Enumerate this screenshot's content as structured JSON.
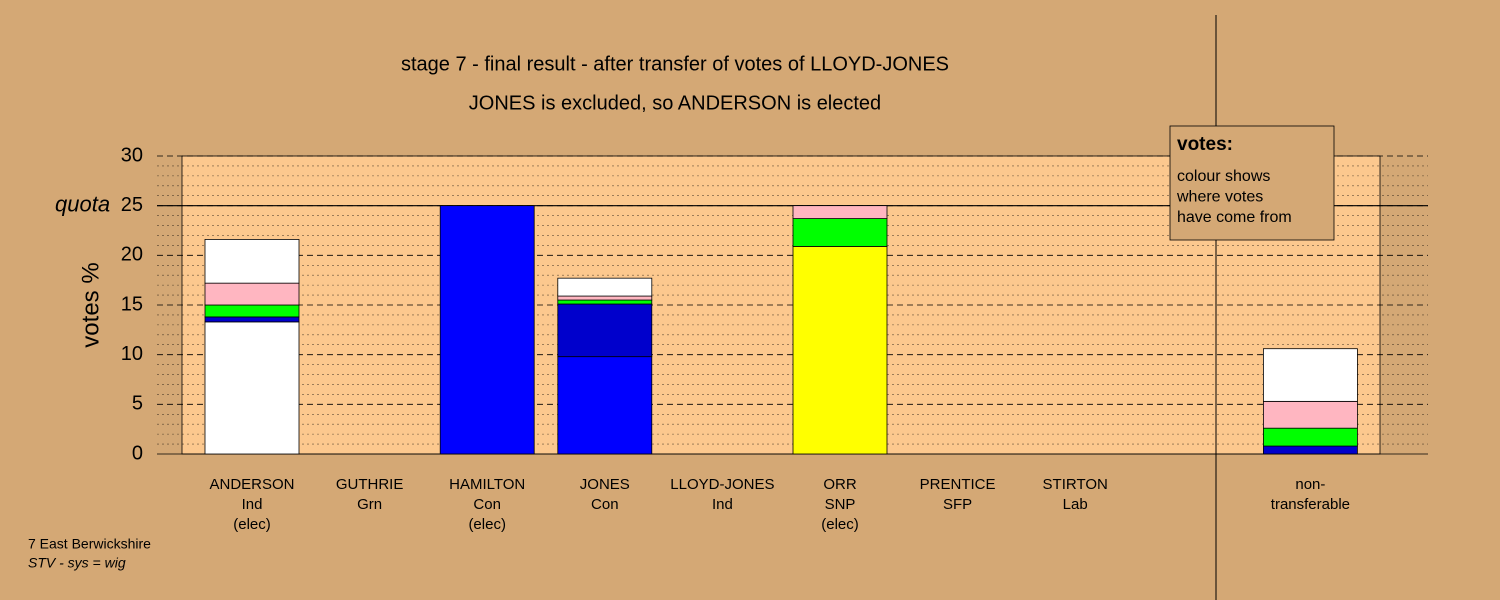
{
  "chart_data": {
    "type": "stacked_bar",
    "title": "stage 7 - final result - after transfer of votes of LLOYD-JONES",
    "subtitle": "JONES is excluded, so ANDERSON is elected",
    "ylabel": "votes %",
    "quota_label": "quota",
    "quota": 25,
    "categories": [
      [
        "ANDERSON",
        "Ind",
        "(elec)"
      ],
      [
        "GUTHRIE",
        "Grn"
      ],
      [
        "HAMILTON",
        "Con",
        "(elec)"
      ],
      [
        "JONES",
        "Con"
      ],
      [
        "LLOYD-JONES",
        "Ind"
      ],
      [
        "ORR",
        "SNP",
        "(elec)"
      ],
      [
        "PRENTICE",
        "SFP"
      ],
      [
        "STIRTON",
        "Lab"
      ],
      null,
      [
        "non-",
        "transferable"
      ]
    ],
    "series": [
      {
        "color": "#ffffff",
        "values": [
          13.3,
          0,
          0,
          0,
          0,
          0,
          0,
          0,
          null,
          0
        ]
      },
      {
        "color": "#0000ff",
        "values": [
          0,
          0,
          25,
          9.8,
          0,
          0,
          0,
          0,
          null,
          0
        ]
      },
      {
        "color": "#0000cc",
        "values": [
          0.5,
          0,
          0,
          5.3,
          0,
          0,
          0,
          0,
          null,
          0.8
        ]
      },
      {
        "color": "#ffff00",
        "values": [
          0,
          0,
          0,
          0,
          0,
          20.9,
          0,
          0,
          null,
          0
        ]
      },
      {
        "color": "#00ff00",
        "values": [
          1.2,
          0,
          0,
          0.4,
          0,
          2.8,
          0,
          0,
          null,
          1.8
        ]
      },
      {
        "color": "#ffb6c1",
        "values": [
          2.2,
          0,
          0,
          0.4,
          0,
          1.3,
          0,
          0,
          null,
          2.7
        ]
      },
      {
        "color": "#ffffff",
        "values": [
          4.4,
          0,
          0,
          1.8,
          0,
          0,
          0,
          0,
          null,
          5.3
        ]
      }
    ],
    "ylim": [
      0,
      30
    ],
    "yticks": [
      0,
      5,
      10,
      15,
      20,
      25,
      30
    ],
    "minor_yticks": [
      1,
      2,
      3,
      4,
      6,
      7,
      8,
      9,
      11,
      12,
      13,
      14,
      16,
      17,
      18,
      19,
      21,
      22,
      23,
      24,
      26,
      27,
      28,
      29
    ],
    "grid": true,
    "note_box": {
      "title": "votes:",
      "lines": [
        "colour shows",
        "where votes",
        "have come from"
      ]
    },
    "footnote": [
      "7 East Berwickshire",
      "STV - sys = wig"
    ]
  }
}
